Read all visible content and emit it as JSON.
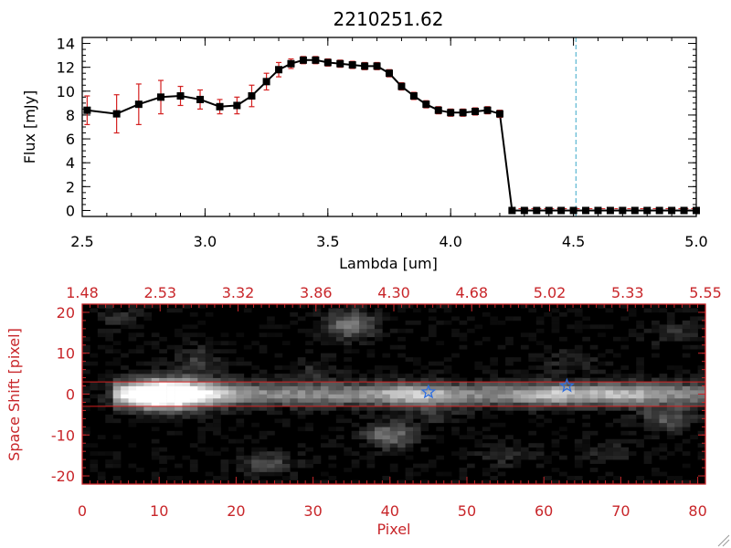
{
  "chart_data": [
    {
      "type": "line",
      "title": "2210251.62",
      "xlabel": "Lambda [um]",
      "ylabel": "Flux [mJy]",
      "xlim": [
        2.5,
        5.0
      ],
      "ylim": [
        -0.5,
        14.5
      ],
      "x_ticks": [
        "2.5",
        "3.0",
        "3.5",
        "4.0",
        "4.5",
        "5.0"
      ],
      "y_ticks": [
        "0",
        "2",
        "4",
        "6",
        "8",
        "10",
        "12",
        "14"
      ],
      "colors": {
        "line": "#000000",
        "marker": "#000000",
        "errorbar": "#d42020",
        "vline": "#3aa8c8"
      },
      "vline_x": 4.51,
      "series": [
        {
          "x": [
            2.52,
            2.64,
            2.73,
            2.82,
            2.9,
            2.98,
            3.06,
            3.13,
            3.19,
            3.25,
            3.3,
            3.35,
            3.4,
            3.45,
            3.5,
            3.55,
            3.6,
            3.65,
            3.7,
            3.75,
            3.8,
            3.85,
            3.9,
            3.95,
            4.0,
            4.05,
            4.1,
            4.15,
            4.2,
            4.25,
            4.3,
            4.35,
            4.4,
            4.45,
            4.5,
            4.55,
            4.6,
            4.65,
            4.7,
            4.75,
            4.8,
            4.85,
            4.9,
            4.95,
            5.0
          ],
          "y": [
            8.4,
            8.1,
            8.9,
            9.5,
            9.6,
            9.3,
            8.7,
            8.8,
            9.6,
            10.8,
            11.8,
            12.3,
            12.6,
            12.6,
            12.4,
            12.3,
            12.2,
            12.1,
            12.1,
            11.5,
            10.4,
            9.6,
            8.9,
            8.4,
            8.2,
            8.2,
            8.3,
            8.4,
            8.1,
            0.0,
            0.0,
            0.0,
            0.0,
            0.0,
            0.0,
            0.0,
            0.0,
            0.0,
            0.0,
            0.0,
            0.0,
            0.0,
            0.0,
            0.0,
            0.0
          ],
          "err": [
            1.2,
            1.6,
            1.7,
            1.4,
            0.8,
            0.8,
            0.6,
            0.7,
            0.9,
            0.7,
            0.6,
            0.4,
            0.3,
            0.3,
            0.3,
            0.3,
            0.3,
            0.3,
            0.3,
            0.3,
            0.3,
            0.3,
            0.3,
            0.3,
            0.3,
            0.3,
            0.3,
            0.3,
            0.3,
            0.2,
            0.2,
            0.2,
            0.2,
            0.2,
            0.2,
            0.2,
            0.2,
            0.2,
            0.2,
            0.2,
            0.2,
            0.2,
            0.2,
            0.2,
            0.2
          ]
        }
      ]
    },
    {
      "type": "heatmap",
      "xlabel": "Pixel",
      "ylabel": "Space Shift [pixel]",
      "xlim": [
        0,
        81
      ],
      "ylim": [
        -22,
        22
      ],
      "x_ticks": [
        "0",
        "10",
        "20",
        "30",
        "40",
        "50",
        "60",
        "70",
        "80"
      ],
      "y_ticks": [
        "-20",
        "-10",
        "0",
        "10",
        "20"
      ],
      "top_ticks": [
        "1.48",
        "2.53",
        "3.32",
        "3.86",
        "4.30",
        "4.68",
        "5.02",
        "5.33",
        "5.55"
      ],
      "hlines": [
        3,
        -3
      ],
      "colors": {
        "axis": "#c8262a",
        "hline": "#d42020",
        "star": "#2f6fe0"
      },
      "trace": {
        "x_start": 4,
        "x_end": 81,
        "y": 0,
        "half_width": 2
      },
      "blobs": [
        {
          "x": 10,
          "y": 0,
          "amp": 0.95,
          "sx": 3.5,
          "sy": 2.6
        },
        {
          "x": 14,
          "y": 0,
          "amp": 0.35,
          "sx": 4,
          "sy": 2.5
        },
        {
          "x": 43,
          "y": 0,
          "amp": 0.3,
          "sx": 3,
          "sy": 2
        },
        {
          "x": 61,
          "y": 0,
          "amp": 0.25,
          "sx": 3,
          "sy": 2
        },
        {
          "x": 70,
          "y": 0,
          "amp": 0.22,
          "sx": 3,
          "sy": 2
        },
        {
          "x": 35,
          "y": 17,
          "amp": 0.5,
          "sx": 2.2,
          "sy": 2.4
        },
        {
          "x": 40,
          "y": -10,
          "amp": 0.45,
          "sx": 2.5,
          "sy": 2.2
        },
        {
          "x": 76,
          "y": -6,
          "amp": 0.35,
          "sx": 2.5,
          "sy": 2
        },
        {
          "x": 24,
          "y": -17,
          "amp": 0.3,
          "sx": 2.5,
          "sy": 2
        },
        {
          "x": 15,
          "y": 8,
          "amp": 0.22,
          "sx": 2.5,
          "sy": 2.5
        },
        {
          "x": 5,
          "y": 19,
          "amp": 0.18,
          "sx": 2,
          "sy": 2
        },
        {
          "x": 63,
          "y": 8,
          "amp": 0.15,
          "sx": 3,
          "sy": 2
        },
        {
          "x": 77,
          "y": 15,
          "amp": 0.18,
          "sx": 2.5,
          "sy": 2
        },
        {
          "x": 55,
          "y": -15,
          "amp": 0.15,
          "sx": 3,
          "sy": 2
        },
        {
          "x": 46,
          "y": -5,
          "amp": 0.15,
          "sx": 2.5,
          "sy": 2
        },
        {
          "x": 30,
          "y": 6,
          "amp": 0.15,
          "sx": 2.5,
          "sy": 2
        },
        {
          "x": 68,
          "y": -14,
          "amp": 0.15,
          "sx": 2.5,
          "sy": 2
        }
      ],
      "stars": [
        {
          "x": 45,
          "y": 0.5
        },
        {
          "x": 63,
          "y": 2
        }
      ]
    }
  ]
}
